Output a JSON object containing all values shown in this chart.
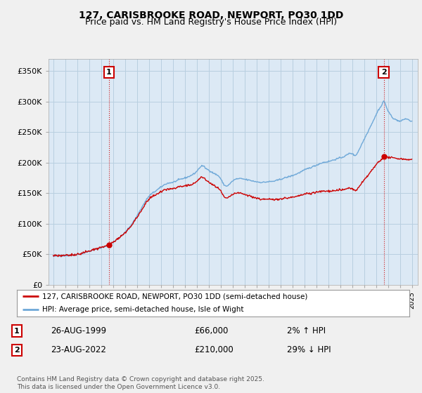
{
  "title": "127, CARISBROOKE ROAD, NEWPORT, PO30 1DD",
  "subtitle": "Price paid vs. HM Land Registry's House Price Index (HPI)",
  "ylabel_ticks": [
    "£0",
    "£50K",
    "£100K",
    "£150K",
    "£200K",
    "£250K",
    "£300K",
    "£350K"
  ],
  "ytick_values": [
    0,
    50000,
    100000,
    150000,
    200000,
    250000,
    300000,
    350000
  ],
  "ylim": [
    0,
    370000
  ],
  "xlim_start": 1994.6,
  "xlim_end": 2025.5,
  "hpi_color": "#6ea8d8",
  "price_color": "#cc0000",
  "marker1_date": 1999.65,
  "marker1_price": 66000,
  "marker2_date": 2022.65,
  "marker2_price": 210000,
  "annotation1_label": "1",
  "annotation2_label": "2",
  "legend_line1": "127, CARISBROOKE ROAD, NEWPORT, PO30 1DD (semi-detached house)",
  "legend_line2": "HPI: Average price, semi-detached house, Isle of Wight",
  "table_row1": [
    "1",
    "26-AUG-1999",
    "£66,000",
    "2% ↑ HPI"
  ],
  "table_row2": [
    "2",
    "23-AUG-2022",
    "£210,000",
    "29% ↓ HPI"
  ],
  "footnote": "Contains HM Land Registry data © Crown copyright and database right 2025.\nThis data is licensed under the Open Government Licence v3.0.",
  "bg_color": "#f0f0f0",
  "plot_bg_color": "#dce9f5",
  "grid_color": "#b8cfe0",
  "title_fontsize": 10,
  "subtitle_fontsize": 9
}
